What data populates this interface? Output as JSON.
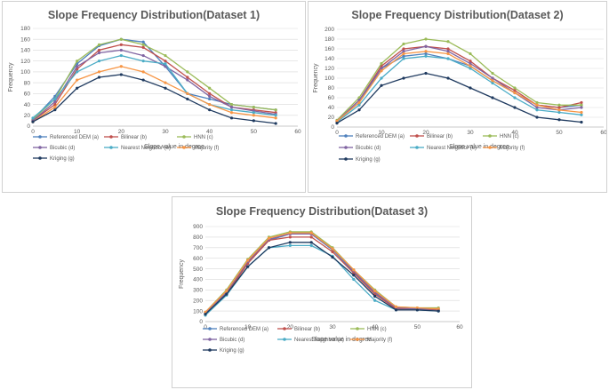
{
  "page": {
    "background": "#ffffff",
    "panel_border": "#d0d0d0"
  },
  "series_styles": [
    {
      "name": "Referenced DEM (a)",
      "color": "#4f81bd",
      "marker": "circle"
    },
    {
      "name": "Bilinear (b)",
      "color": "#c0504d",
      "marker": "circle"
    },
    {
      "name": "HNN (c)",
      "color": "#9bbb59",
      "marker": "circle"
    },
    {
      "name": "Bicubic (d)",
      "color": "#8064a2",
      "marker": "circle"
    },
    {
      "name": "Nearest Neighbor (e)",
      "color": "#4bacc6",
      "marker": "circle"
    },
    {
      "name": "Majority (f)",
      "color": "#f79646",
      "marker": "circle"
    },
    {
      "name": "Kriging (g)",
      "color": "#1f3a5f",
      "marker": "circle"
    }
  ],
  "chart_data": [
    {
      "type": "line",
      "title": "Slope Frequency Distribution(Dataset 1)",
      "xlabel": "Slope value in degree",
      "ylabel": "Frequency",
      "xlim": [
        0,
        60
      ],
      "ylim": [
        0,
        180
      ],
      "xticks": [
        0,
        10,
        20,
        30,
        40,
        50,
        60
      ],
      "yticks": [
        0,
        20,
        40,
        60,
        80,
        100,
        120,
        140,
        160,
        180
      ],
      "grid": "horizontal",
      "legend": "bottom",
      "x": [
        0,
        5,
        10,
        15,
        20,
        25,
        30,
        35,
        40,
        45,
        50,
        55
      ],
      "series": [
        {
          "name": "Referenced DEM (a)",
          "values": [
            12,
            55,
            115,
            148,
            160,
            155,
            110,
            60,
            50,
            40,
            35,
            30
          ]
        },
        {
          "name": "Bilinear (b)",
          "values": [
            10,
            40,
            105,
            140,
            150,
            145,
            120,
            90,
            60,
            35,
            30,
            25
          ]
        },
        {
          "name": "HNN (c)",
          "values": [
            12,
            50,
            120,
            150,
            160,
            150,
            130,
            100,
            70,
            40,
            35,
            30
          ]
        },
        {
          "name": "Bicubic (d)",
          "values": [
            10,
            45,
            110,
            135,
            140,
            130,
            110,
            85,
            55,
            35,
            28,
            22
          ]
        },
        {
          "name": "Nearest Neighbor (e)",
          "values": [
            15,
            50,
            100,
            120,
            130,
            120,
            115,
            60,
            40,
            30,
            25,
            20
          ]
        },
        {
          "name": "Majority (f)",
          "values": [
            8,
            35,
            85,
            100,
            110,
            100,
            80,
            60,
            40,
            25,
            20,
            15
          ]
        },
        {
          "name": "Kriging (g)",
          "values": [
            8,
            30,
            70,
            90,
            95,
            85,
            70,
            50,
            30,
            15,
            10,
            5
          ]
        }
      ]
    },
    {
      "type": "line",
      "title": "Slope Frequency Distribution(Dataset 2)",
      "xlabel": "Slope value in degree",
      "ylabel": "Frequency",
      "xlim": [
        0,
        60
      ],
      "ylim": [
        0,
        200
      ],
      "xticks": [
        0,
        10,
        20,
        30,
        40,
        50,
        60
      ],
      "yticks": [
        0,
        20,
        40,
        60,
        80,
        100,
        120,
        140,
        160,
        180,
        200
      ],
      "grid": "horizontal",
      "legend": "bottom",
      "x": [
        0,
        5,
        10,
        15,
        20,
        25,
        30,
        35,
        40,
        45,
        50,
        55
      ],
      "series": [
        {
          "name": "Referenced DEM (a)",
          "values": [
            12,
            50,
            120,
            145,
            150,
            140,
            125,
            95,
            70,
            45,
            40,
            45
          ]
        },
        {
          "name": "Bilinear (b)",
          "values": [
            12,
            55,
            125,
            160,
            165,
            160,
            135,
            100,
            75,
            45,
            40,
            50
          ]
        },
        {
          "name": "HNN (c)",
          "values": [
            14,
            60,
            130,
            170,
            180,
            175,
            150,
            110,
            80,
            50,
            45,
            45
          ]
        },
        {
          "name": "Bicubic (d)",
          "values": [
            12,
            55,
            120,
            155,
            165,
            155,
            130,
            100,
            70,
            40,
            35,
            40
          ]
        },
        {
          "name": "Nearest Neighbor (e)",
          "values": [
            10,
            45,
            100,
            140,
            145,
            140,
            120,
            90,
            60,
            35,
            30,
            25
          ]
        },
        {
          "name": "Majority (f)",
          "values": [
            12,
            50,
            115,
            150,
            155,
            150,
            125,
            95,
            70,
            45,
            35,
            30
          ]
        },
        {
          "name": "Kriging (g)",
          "values": [
            8,
            35,
            85,
            100,
            110,
            100,
            80,
            60,
            40,
            20,
            15,
            10
          ]
        }
      ]
    },
    {
      "type": "line",
      "title": "Slope Frequency Distribution(Dataset 3)",
      "xlabel": "Slope value in degree",
      "ylabel": "Frequency",
      "xlim": [
        0,
        60
      ],
      "ylim": [
        0,
        900
      ],
      "xticks": [
        0,
        10,
        20,
        30,
        40,
        50,
        60
      ],
      "yticks": [
        0,
        100,
        200,
        300,
        400,
        500,
        600,
        700,
        800,
        900
      ],
      "grid": "horizontal",
      "legend": "bottom",
      "x": [
        0,
        5,
        10,
        15,
        20,
        25,
        30,
        35,
        40,
        45,
        50,
        55
      ],
      "series": [
        {
          "name": "Referenced DEM (a)",
          "values": [
            80,
            270,
            560,
            770,
            830,
            830,
            680,
            470,
            270,
            130,
            120,
            110
          ]
        },
        {
          "name": "Bilinear (b)",
          "values": [
            70,
            260,
            550,
            770,
            800,
            800,
            660,
            460,
            260,
            120,
            115,
            110
          ]
        },
        {
          "name": "HNN (c)",
          "values": [
            90,
            300,
            590,
            800,
            850,
            850,
            700,
            490,
            300,
            140,
            130,
            130
          ]
        },
        {
          "name": "Bicubic (d)",
          "values": [
            80,
            280,
            570,
            780,
            830,
            830,
            690,
            480,
            280,
            130,
            120,
            120
          ]
        },
        {
          "name": "Nearest Neighbor (e)",
          "values": [
            60,
            250,
            520,
            700,
            720,
            720,
            620,
            400,
            200,
            110,
            110,
            100
          ]
        },
        {
          "name": "Majority (f)",
          "values": [
            90,
            290,
            580,
            790,
            840,
            840,
            690,
            490,
            290,
            140,
            130,
            120
          ]
        },
        {
          "name": "Kriging (g)",
          "values": [
            70,
            260,
            520,
            700,
            750,
            750,
            610,
            440,
            240,
            110,
            110,
            100
          ]
        }
      ]
    }
  ]
}
